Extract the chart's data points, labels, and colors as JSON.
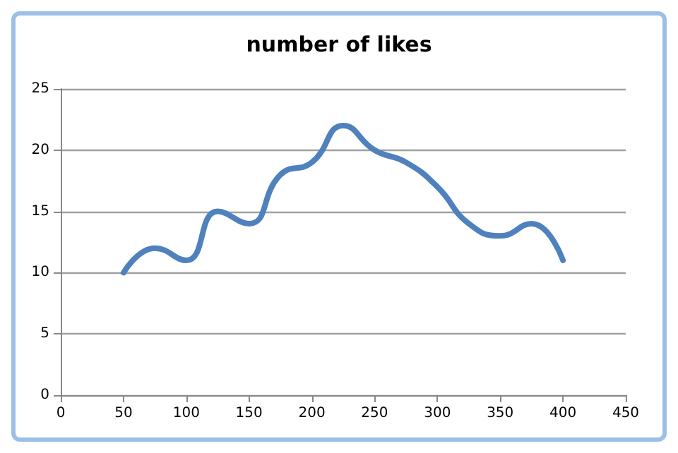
{
  "chart_data": {
    "type": "line",
    "title": "number of likes",
    "x": [
      50,
      75,
      100,
      125,
      150,
      175,
      200,
      225,
      250,
      275,
      300,
      325,
      350,
      375,
      400
    ],
    "series": [
      {
        "color": "#4f81bd",
        "values": [
          10,
          12,
          11,
          15,
          14,
          18,
          19,
          22,
          20,
          19,
          17,
          14,
          13,
          14,
          11
        ]
      }
    ],
    "xlim": [
      0,
      450
    ],
    "xticks": [
      0,
      50,
      100,
      150,
      200,
      250,
      300,
      350,
      400,
      450
    ],
    "ylim": [
      0,
      25
    ],
    "yticks": [
      0,
      5,
      10,
      15,
      20,
      25
    ],
    "grid": "y",
    "marker": "none",
    "line_style": "solid"
  }
}
